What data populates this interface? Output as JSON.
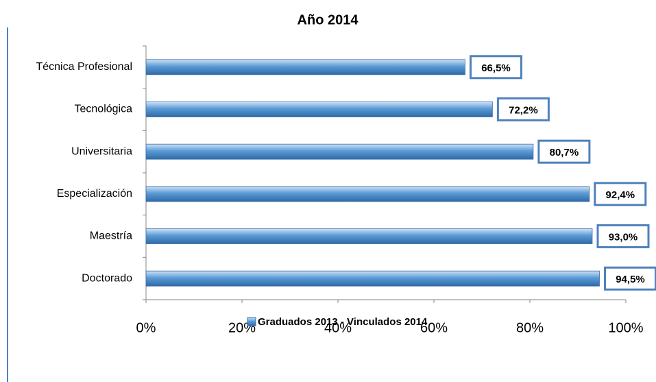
{
  "chart_data": {
    "type": "bar",
    "orientation": "horizontal",
    "title": "Año 2014",
    "categories": [
      "Técnica Profesional",
      "Tecnológica",
      "Universitaria",
      "Especialización",
      "Maestría",
      "Doctorado"
    ],
    "series": [
      {
        "name": "Graduados 2013 - Vinculados 2014",
        "color": "#5b9bd5",
        "values": [
          66.5,
          72.2,
          80.7,
          92.4,
          93.0,
          94.5
        ],
        "value_labels": [
          "66,5%",
          "72,2%",
          "80,7%",
          "92,4%",
          "93,0%",
          "94,5%"
        ]
      }
    ],
    "xlim": [
      0,
      100
    ],
    "xticks": [
      {
        "value": 0,
        "label": "0%"
      },
      {
        "value": 20,
        "label": "20%"
      },
      {
        "value": 40,
        "label": "40%"
      },
      {
        "value": 60,
        "label": "60%"
      },
      {
        "value": 80,
        "label": "80%"
      },
      {
        "value": 100,
        "label": "100%"
      }
    ],
    "legend": "bottom"
  }
}
